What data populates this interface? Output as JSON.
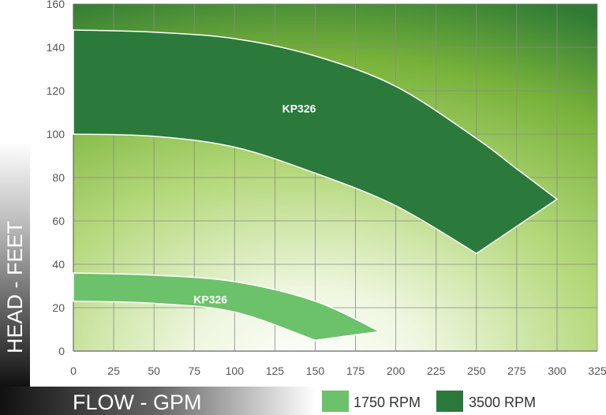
{
  "chart_data": {
    "type": "area",
    "xlabel": "FLOW - GPM",
    "ylabel": "HEAD - FEET",
    "xlim": [
      0,
      325
    ],
    "ylim": [
      0,
      160
    ],
    "x_ticks": [
      0,
      25,
      50,
      75,
      100,
      125,
      150,
      175,
      200,
      225,
      250,
      275,
      300,
      325
    ],
    "y_ticks": [
      0,
      20,
      40,
      60,
      80,
      100,
      120,
      140,
      160
    ],
    "grid": true,
    "legend_position": "bottom-right",
    "legend": [
      {
        "label": "1750 RPM",
        "color": "#6cc16b"
      },
      {
        "label": "3500 RPM",
        "color": "#2b7a3c"
      }
    ],
    "series": [
      {
        "name": "3500 RPM",
        "label": "KP326",
        "label_at": [
          140,
          110
        ],
        "color": "#2b7a3c",
        "upper_curve": [
          [
            0,
            148
          ],
          [
            50,
            147
          ],
          [
            100,
            144
          ],
          [
            150,
            136
          ],
          [
            200,
            122
          ],
          [
            250,
            98
          ],
          [
            275,
            84
          ],
          [
            300,
            70
          ]
        ],
        "lower_curve": [
          [
            0,
            100
          ],
          [
            50,
            99
          ],
          [
            100,
            94
          ],
          [
            150,
            82
          ],
          [
            200,
            67
          ],
          [
            250,
            45
          ]
        ]
      },
      {
        "name": "1750 RPM",
        "label": "KP326",
        "label_at": [
          85,
          22
        ],
        "color": "#6cc16b",
        "upper_curve": [
          [
            0,
            36
          ],
          [
            50,
            35
          ],
          [
            100,
            32
          ],
          [
            150,
            23
          ],
          [
            190,
            9
          ]
        ],
        "lower_curve": [
          [
            0,
            23
          ],
          [
            50,
            22
          ],
          [
            100,
            18
          ],
          [
            150,
            5
          ]
        ]
      }
    ]
  }
}
